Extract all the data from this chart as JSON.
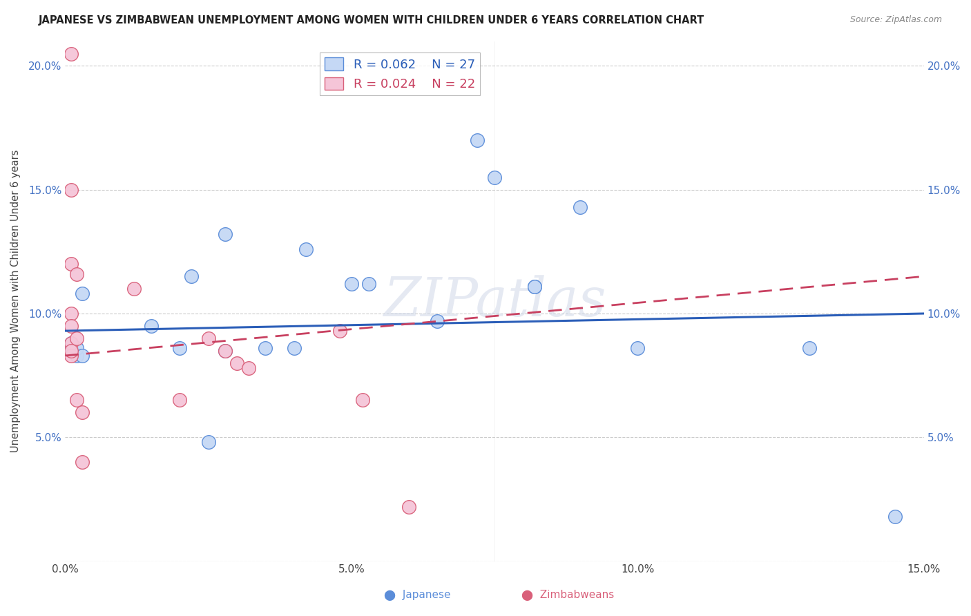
{
  "title": "JAPANESE VS ZIMBABWEAN UNEMPLOYMENT AMONG WOMEN WITH CHILDREN UNDER 6 YEARS CORRELATION CHART",
  "source": "Source: ZipAtlas.com",
  "ylabel": "Unemployment Among Women with Children Under 6 years",
  "xlim": [
    0,
    0.15
  ],
  "ylim": [
    0,
    0.21
  ],
  "xticks": [
    0.0,
    0.025,
    0.05,
    0.075,
    0.1,
    0.125,
    0.15
  ],
  "xtick_labels": [
    "0.0%",
    "",
    "5.0%",
    "",
    "10.0%",
    "",
    "15.0%"
  ],
  "yticks": [
    0.0,
    0.05,
    0.1,
    0.15,
    0.2
  ],
  "ytick_labels": [
    "",
    "5.0%",
    "10.0%",
    "15.0%",
    "20.0%"
  ],
  "legend_r1": "R = 0.062",
  "legend_n1": "N = 27",
  "legend_r2": "R = 0.024",
  "legend_n2": "N = 22",
  "japanese_color": "#c5d8f5",
  "zimbabwean_color": "#f5c5d8",
  "japanese_edge": "#5b8dd9",
  "zimbabwean_edge": "#d9607a",
  "trend_japanese_color": "#2b5eb8",
  "trend_zimbabwean_color": "#c84060",
  "watermark": "ZIPatlas",
  "japanese_x": [
    0.001,
    0.001,
    0.001,
    0.002,
    0.002,
    0.003,
    0.003,
    0.015,
    0.02,
    0.022,
    0.025,
    0.028,
    0.028,
    0.035,
    0.04,
    0.042,
    0.05,
    0.053,
    0.065,
    0.072,
    0.075,
    0.082,
    0.082,
    0.09,
    0.1,
    0.13,
    0.145
  ],
  "japanese_y": [
    0.085,
    0.086,
    0.088,
    0.083,
    0.086,
    0.083,
    0.108,
    0.095,
    0.086,
    0.115,
    0.048,
    0.085,
    0.132,
    0.086,
    0.086,
    0.126,
    0.112,
    0.112,
    0.097,
    0.17,
    0.155,
    0.111,
    0.111,
    0.143,
    0.086,
    0.086,
    0.018
  ],
  "zimbabwean_x": [
    0.001,
    0.001,
    0.001,
    0.001,
    0.001,
    0.001,
    0.001,
    0.001,
    0.002,
    0.002,
    0.002,
    0.003,
    0.003,
    0.012,
    0.02,
    0.025,
    0.028,
    0.03,
    0.032,
    0.048,
    0.052,
    0.06
  ],
  "zimbabwean_y": [
    0.205,
    0.15,
    0.12,
    0.1,
    0.095,
    0.088,
    0.083,
    0.085,
    0.116,
    0.09,
    0.065,
    0.06,
    0.04,
    0.11,
    0.065,
    0.09,
    0.085,
    0.08,
    0.078,
    0.093,
    0.065,
    0.022
  ],
  "trend_j_x0": 0.0,
  "trend_j_y0": 0.093,
  "trend_j_x1": 0.15,
  "trend_j_y1": 0.1,
  "trend_z_x0": 0.0,
  "trend_z_y0": 0.083,
  "trend_z_x1": 0.15,
  "trend_z_y1": 0.115
}
